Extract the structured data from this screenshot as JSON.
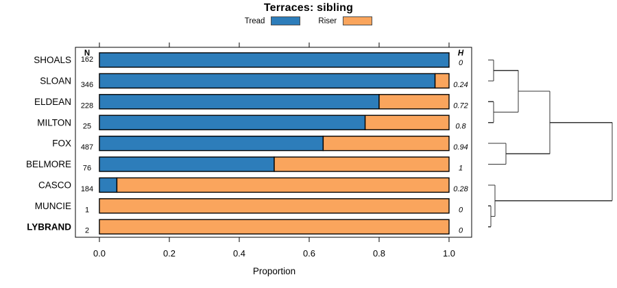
{
  "chart_data": {
    "type": "bar",
    "orientation": "horizontal",
    "stacked": true,
    "title": "Terraces: sibling",
    "xlabel": "Proportion",
    "xlim": [
      0,
      1
    ],
    "x_tick_values": [
      0,
      0.2,
      0.4,
      0.6,
      0.8,
      1.0
    ],
    "x_tick_labels": [
      "0.0",
      "0.2",
      "0.4",
      "0.6",
      "0.8",
      "1.0"
    ],
    "grid": false,
    "legend_position": "top",
    "categories": [
      "SHOALS",
      "SLOAN",
      "ELDEAN",
      "MILTON",
      "FOX",
      "BELMORE",
      "CASCO",
      "MUNCIE",
      "LYBRAND"
    ],
    "emphasized_category": "LYBRAND",
    "series": [
      {
        "name": "Tread",
        "color": "#2D7DBA",
        "values": [
          1.0,
          0.96,
          0.8,
          0.76,
          0.64,
          0.5,
          0.05,
          0.0,
          0.0
        ]
      },
      {
        "name": "Riser",
        "color": "#FAA55D",
        "values": [
          0.0,
          0.04,
          0.2,
          0.24,
          0.36,
          0.5,
          0.95,
          1.0,
          1.0
        ]
      }
    ],
    "left_column": {
      "header": "N",
      "values": [
        "162",
        "346",
        "228",
        "25",
        "487",
        "76",
        "184",
        "1",
        "2"
      ]
    },
    "right_column": {
      "header": "H",
      "values": [
        "0",
        "0.24",
        "0.72",
        "0.8",
        "0.94",
        "1",
        "0.28",
        "0",
        "0"
      ]
    },
    "dendrogram": {
      "position": "right",
      "height_range": [
        0,
        1
      ],
      "segments": [
        {
          "x1": 0,
          "y1": 0,
          "x2": 0.044,
          "y2": 0
        },
        {
          "x1": 0,
          "y1": 1,
          "x2": 0.044,
          "y2": 1
        },
        {
          "x1": 0.044,
          "y1": 0,
          "x2": 0.044,
          "y2": 1
        },
        {
          "x1": 0.044,
          "y1": 0.5,
          "x2": 0.243,
          "y2": 0.5
        },
        {
          "x1": 0,
          "y1": 2,
          "x2": 0.044,
          "y2": 2
        },
        {
          "x1": 0,
          "y1": 3,
          "x2": 0.044,
          "y2": 3
        },
        {
          "x1": 0.044,
          "y1": 2,
          "x2": 0.044,
          "y2": 3
        },
        {
          "x1": 0.044,
          "y1": 2.5,
          "x2": 0.243,
          "y2": 2.5
        },
        {
          "x1": 0.243,
          "y1": 0.5,
          "x2": 0.243,
          "y2": 2.5
        },
        {
          "x1": 0.243,
          "y1": 1.5,
          "x2": 0.497,
          "y2": 1.5
        },
        {
          "x1": 0,
          "y1": 4,
          "x2": 0.144,
          "y2": 4
        },
        {
          "x1": 0,
          "y1": 5,
          "x2": 0.144,
          "y2": 5
        },
        {
          "x1": 0.144,
          "y1": 4,
          "x2": 0.144,
          "y2": 5
        },
        {
          "x1": 0.144,
          "y1": 4.5,
          "x2": 0.497,
          "y2": 4.5
        },
        {
          "x1": 0.497,
          "y1": 1.5,
          "x2": 0.497,
          "y2": 4.5
        },
        {
          "x1": 0.497,
          "y1": 3,
          "x2": 1,
          "y2": 3
        },
        {
          "x1": 0,
          "y1": 6,
          "x2": 0.055,
          "y2": 6
        },
        {
          "x1": 0,
          "y1": 7,
          "x2": 0.022,
          "y2": 7
        },
        {
          "x1": 0,
          "y1": 8,
          "x2": 0.022,
          "y2": 8
        },
        {
          "x1": 0.022,
          "y1": 7,
          "x2": 0.022,
          "y2": 8
        },
        {
          "x1": 0.022,
          "y1": 7.5,
          "x2": 0.055,
          "y2": 7.5
        },
        {
          "x1": 0.055,
          "y1": 6,
          "x2": 0.055,
          "y2": 7.5
        },
        {
          "x1": 0.055,
          "y1": 6.75,
          "x2": 1,
          "y2": 6.75
        },
        {
          "x1": 1,
          "y1": 3,
          "x2": 1,
          "y2": 6.75
        }
      ]
    }
  }
}
